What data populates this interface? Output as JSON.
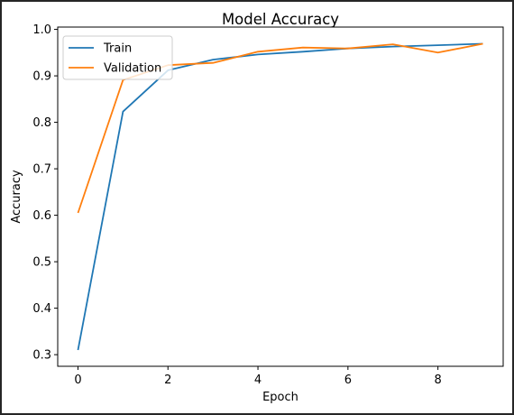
{
  "chart_data": {
    "type": "line",
    "title": "Model Accuracy",
    "xlabel": "Epoch",
    "ylabel": "Accuracy",
    "xlim": [
      -0.45,
      9.45
    ],
    "ylim": [
      0.275,
      1.005
    ],
    "xticks": [
      0,
      2,
      4,
      6,
      8
    ],
    "yticks": [
      0.3,
      0.4,
      0.5,
      0.6,
      0.7,
      0.8,
      0.9,
      1.0
    ],
    "ytick_labels": [
      "0.3",
      "0.4",
      "0.5",
      "0.6",
      "0.7",
      "0.8",
      "0.9",
      "1.0"
    ],
    "grid": false,
    "legend_position": "upper left",
    "x": [
      0,
      1,
      2,
      3,
      4,
      5,
      6,
      7,
      8,
      9
    ],
    "series": [
      {
        "name": "Train",
        "color": "#1f77b4",
        "values": [
          0.31,
          0.823,
          0.912,
          0.935,
          0.946,
          0.952,
          0.959,
          0.963,
          0.966,
          0.969
        ]
      },
      {
        "name": "Validation",
        "color": "#ff7f0e",
        "values": [
          0.605,
          0.891,
          0.923,
          0.928,
          0.952,
          0.961,
          0.959,
          0.968,
          0.95,
          0.969
        ]
      }
    ]
  }
}
